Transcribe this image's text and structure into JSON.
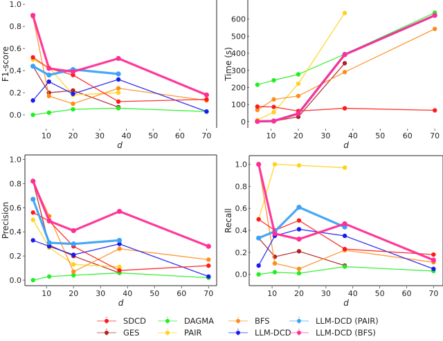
{
  "chart_data": [
    {
      "id": "f1",
      "type": "line",
      "title": "",
      "xlabel": "d",
      "ylabel": "F1-score",
      "x": [
        5,
        11,
        20,
        37,
        70
      ],
      "xlim": [
        2,
        73
      ],
      "ylim": [
        -0.1,
        1.02
      ],
      "xticks": [
        10,
        20,
        30,
        40,
        50,
        60,
        70
      ],
      "yticks": [
        0.0,
        0.2,
        0.4,
        0.6,
        0.8,
        1.0
      ],
      "ytick_labels": [
        "0.0",
        "0.2",
        "0.4",
        "0.6",
        "0.8",
        "1.0"
      ],
      "grid": false,
      "series": [
        {
          "name": "SDCD",
          "values": [
            0.52,
            0.42,
            0.36,
            0.12,
            0.14
          ]
        },
        {
          "name": "GES",
          "values": [
            0.44,
            0.2,
            0.22,
            0.07,
            null
          ]
        },
        {
          "name": "DAGMA",
          "values": [
            0.0,
            0.02,
            0.05,
            0.06,
            0.03
          ]
        },
        {
          "name": "PAIR",
          "values": [
            0.5,
            0.43,
            0.18,
            0.2,
            null
          ]
        },
        {
          "name": "BFS",
          "values": [
            0.89,
            0.17,
            0.1,
            0.24,
            0.13
          ]
        },
        {
          "name": "LLM-DCD",
          "values": [
            0.13,
            0.3,
            0.19,
            0.32,
            0.03
          ]
        },
        {
          "name": "LLM-DCD (PAIR)",
          "values": [
            0.44,
            0.36,
            0.41,
            0.37,
            null
          ]
        },
        {
          "name": "LLM-DCD (BFS)",
          "values": [
            0.9,
            0.42,
            0.39,
            0.51,
            0.18
          ]
        }
      ]
    },
    {
      "id": "time",
      "type": "line",
      "title": "",
      "xlabel": "d",
      "ylabel": "Time (s)",
      "x": [
        5,
        11,
        20,
        37,
        70
      ],
      "xlim": [
        2,
        73
      ],
      "ylim": [
        -25,
        700
      ],
      "xticks": [
        10,
        20,
        30,
        40,
        50,
        60,
        70
      ],
      "yticks": [
        0,
        100,
        200,
        300,
        400,
        500,
        600
      ],
      "ytick_labels": [
        "0",
        "100",
        "200",
        "300",
        "400",
        "500",
        "600"
      ],
      "grid": false,
      "series": [
        {
          "name": "SDCD",
          "values": [
            88,
            86,
            62,
            78,
            66
          ]
        },
        {
          "name": "GES",
          "values": [
            2,
            3,
            28,
            342,
            null
          ]
        },
        {
          "name": "DAGMA",
          "values": [
            216,
            242,
            277,
            395,
            638
          ]
        },
        {
          "name": "PAIR",
          "values": [
            10,
            55,
            222,
            636,
            null
          ]
        },
        {
          "name": "BFS",
          "values": [
            68,
            130,
            150,
            290,
            543
          ]
        },
        {
          "name": "LLM-DCD",
          "values": [
            2,
            5,
            50,
            395,
            622
          ]
        },
        {
          "name": "LLM-DCD (PAIR)",
          "values": [
            1,
            4,
            48,
            393,
            622
          ]
        },
        {
          "name": "LLM-DCD (BFS)",
          "values": [
            1,
            3,
            47,
            392,
            622
          ]
        }
      ]
    },
    {
      "id": "precision",
      "type": "line",
      "title": "",
      "xlabel": "d",
      "ylabel": "Precision",
      "x": [
        5,
        11,
        20,
        37,
        70
      ],
      "xlim": [
        2,
        73
      ],
      "ylim": [
        -0.04,
        1.02
      ],
      "xticks": [
        10,
        20,
        30,
        40,
        50,
        60,
        70
      ],
      "yticks": [
        0.0,
        0.2,
        0.4,
        0.6,
        0.8,
        1.0
      ],
      "ytick_labels": [
        "0.0",
        "0.2",
        "0.4",
        "0.6",
        "0.8",
        "1.0"
      ],
      "grid": false,
      "series": [
        {
          "name": "SDCD",
          "values": [
            0.56,
            0.49,
            0.28,
            0.08,
            0.12
          ]
        },
        {
          "name": "GES",
          "values": [
            0.82,
            0.29,
            0.2,
            0.06,
            null
          ]
        },
        {
          "name": "DAGMA",
          "values": [
            0.0,
            0.03,
            0.04,
            0.06,
            0.02
          ]
        },
        {
          "name": "PAIR",
          "values": [
            0.5,
            0.27,
            0.13,
            0.11,
            null
          ]
        },
        {
          "name": "BFS",
          "values": [
            0.82,
            0.53,
            0.07,
            0.26,
            0.17
          ]
        },
        {
          "name": "LLM-DCD",
          "values": [
            0.33,
            0.28,
            0.21,
            0.3,
            0.03
          ]
        },
        {
          "name": "LLM-DCD (PAIR)",
          "values": [
            0.67,
            0.31,
            0.3,
            0.33,
            null
          ]
        },
        {
          "name": "LLM-DCD (BFS)",
          "values": [
            0.82,
            0.49,
            0.41,
            0.57,
            0.28
          ]
        }
      ]
    },
    {
      "id": "recall",
      "type": "line",
      "title": "",
      "xlabel": "d",
      "ylabel": "Recall",
      "x": [
        5,
        11,
        20,
        37,
        70
      ],
      "xlim": [
        2,
        73
      ],
      "ylim": [
        -0.09,
        1.06
      ],
      "xticks": [
        10,
        20,
        30,
        40,
        50,
        60,
        70
      ],
      "yticks": [
        0.0,
        0.2,
        0.4,
        0.6,
        0.8,
        1.0
      ],
      "ytick_labels": [
        "0.0",
        "0.2",
        "0.4",
        "0.6",
        "0.8",
        "1.0"
      ],
      "grid": false,
      "series": [
        {
          "name": "SDCD",
          "values": [
            0.5,
            0.4,
            0.49,
            0.23,
            0.18
          ]
        },
        {
          "name": "GES",
          "values": [
            0.33,
            0.16,
            0.21,
            0.08,
            null
          ]
        },
        {
          "name": "DAGMA",
          "values": [
            0.0,
            0.02,
            0.01,
            0.07,
            0.03
          ]
        },
        {
          "name": "PAIR",
          "values": [
            0.5,
            1.0,
            0.99,
            0.97,
            null
          ]
        },
        {
          "name": "BFS",
          "values": [
            1.0,
            0.1,
            0.05,
            0.22,
            0.11
          ]
        },
        {
          "name": "LLM-DCD",
          "values": [
            0.08,
            0.35,
            0.41,
            0.35,
            0.05
          ]
        },
        {
          "name": "LLM-DCD (PAIR)",
          "values": [
            0.33,
            0.39,
            0.61,
            0.43,
            null
          ]
        },
        {
          "name": "LLM-DCD (BFS)",
          "values": [
            1.0,
            0.37,
            0.32,
            0.46,
            0.13
          ]
        }
      ]
    }
  ],
  "series_styles": {
    "SDCD": {
      "color": "#ff1a1a",
      "emphasis": "normal"
    },
    "GES": {
      "color": "#b22222",
      "emphasis": "normal"
    },
    "DAGMA": {
      "color": "#22ee22",
      "emphasis": "normal"
    },
    "PAIR": {
      "color": "#ffd21a",
      "emphasis": "normal"
    },
    "BFS": {
      "color": "#ff8c1a",
      "emphasis": "normal"
    },
    "LLM-DCD": {
      "color": "#1a1aee",
      "emphasis": "normal"
    },
    "LLM-DCD (PAIR)": {
      "color": "#3ba3f5",
      "emphasis": "bold"
    },
    "LLM-DCD (BFS)": {
      "color": "#ff2d95",
      "emphasis": "bold"
    }
  },
  "legend": {
    "placement": "bottom-center",
    "entries": [
      "SDCD",
      "GES",
      "DAGMA",
      "PAIR",
      "BFS",
      "LLM-DCD",
      "LLM-DCD (PAIR)",
      "LLM-DCD (BFS)"
    ]
  }
}
